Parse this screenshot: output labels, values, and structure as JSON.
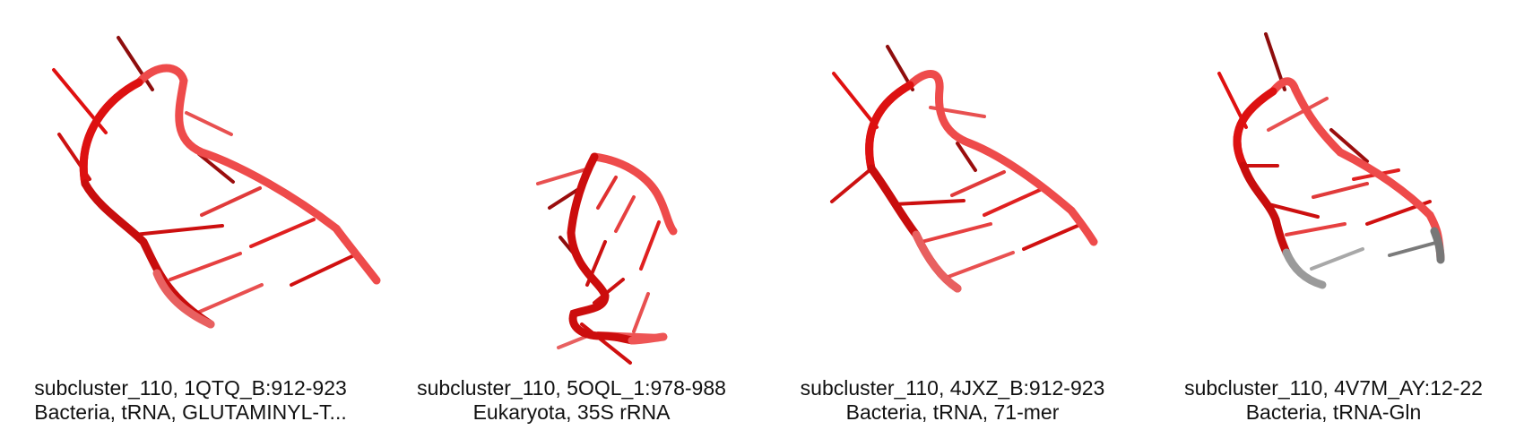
{
  "panels": [
    {
      "title": "subcluster_110, 1QTQ_B:912-923",
      "subtitle": "Bacteria, tRNA, GLUTAMINYL-T..."
    },
    {
      "title": "subcluster_110, 5OQL_1:978-988",
      "subtitle": "Eukaryota, 35S rRNA"
    },
    {
      "title": "subcluster_110, 4JXZ_B:912-923",
      "subtitle": "Bacteria, tRNA, 71-mer"
    },
    {
      "title": "subcluster_110, 4V7M_AY:12-22",
      "subtitle": "Bacteria, tRNA-Gln"
    }
  ],
  "colors": {
    "strand_dark": "#cc0000",
    "strand_mid": "#e62020",
    "strand_light": "#ee5555",
    "gray": "#9a9a9a"
  }
}
